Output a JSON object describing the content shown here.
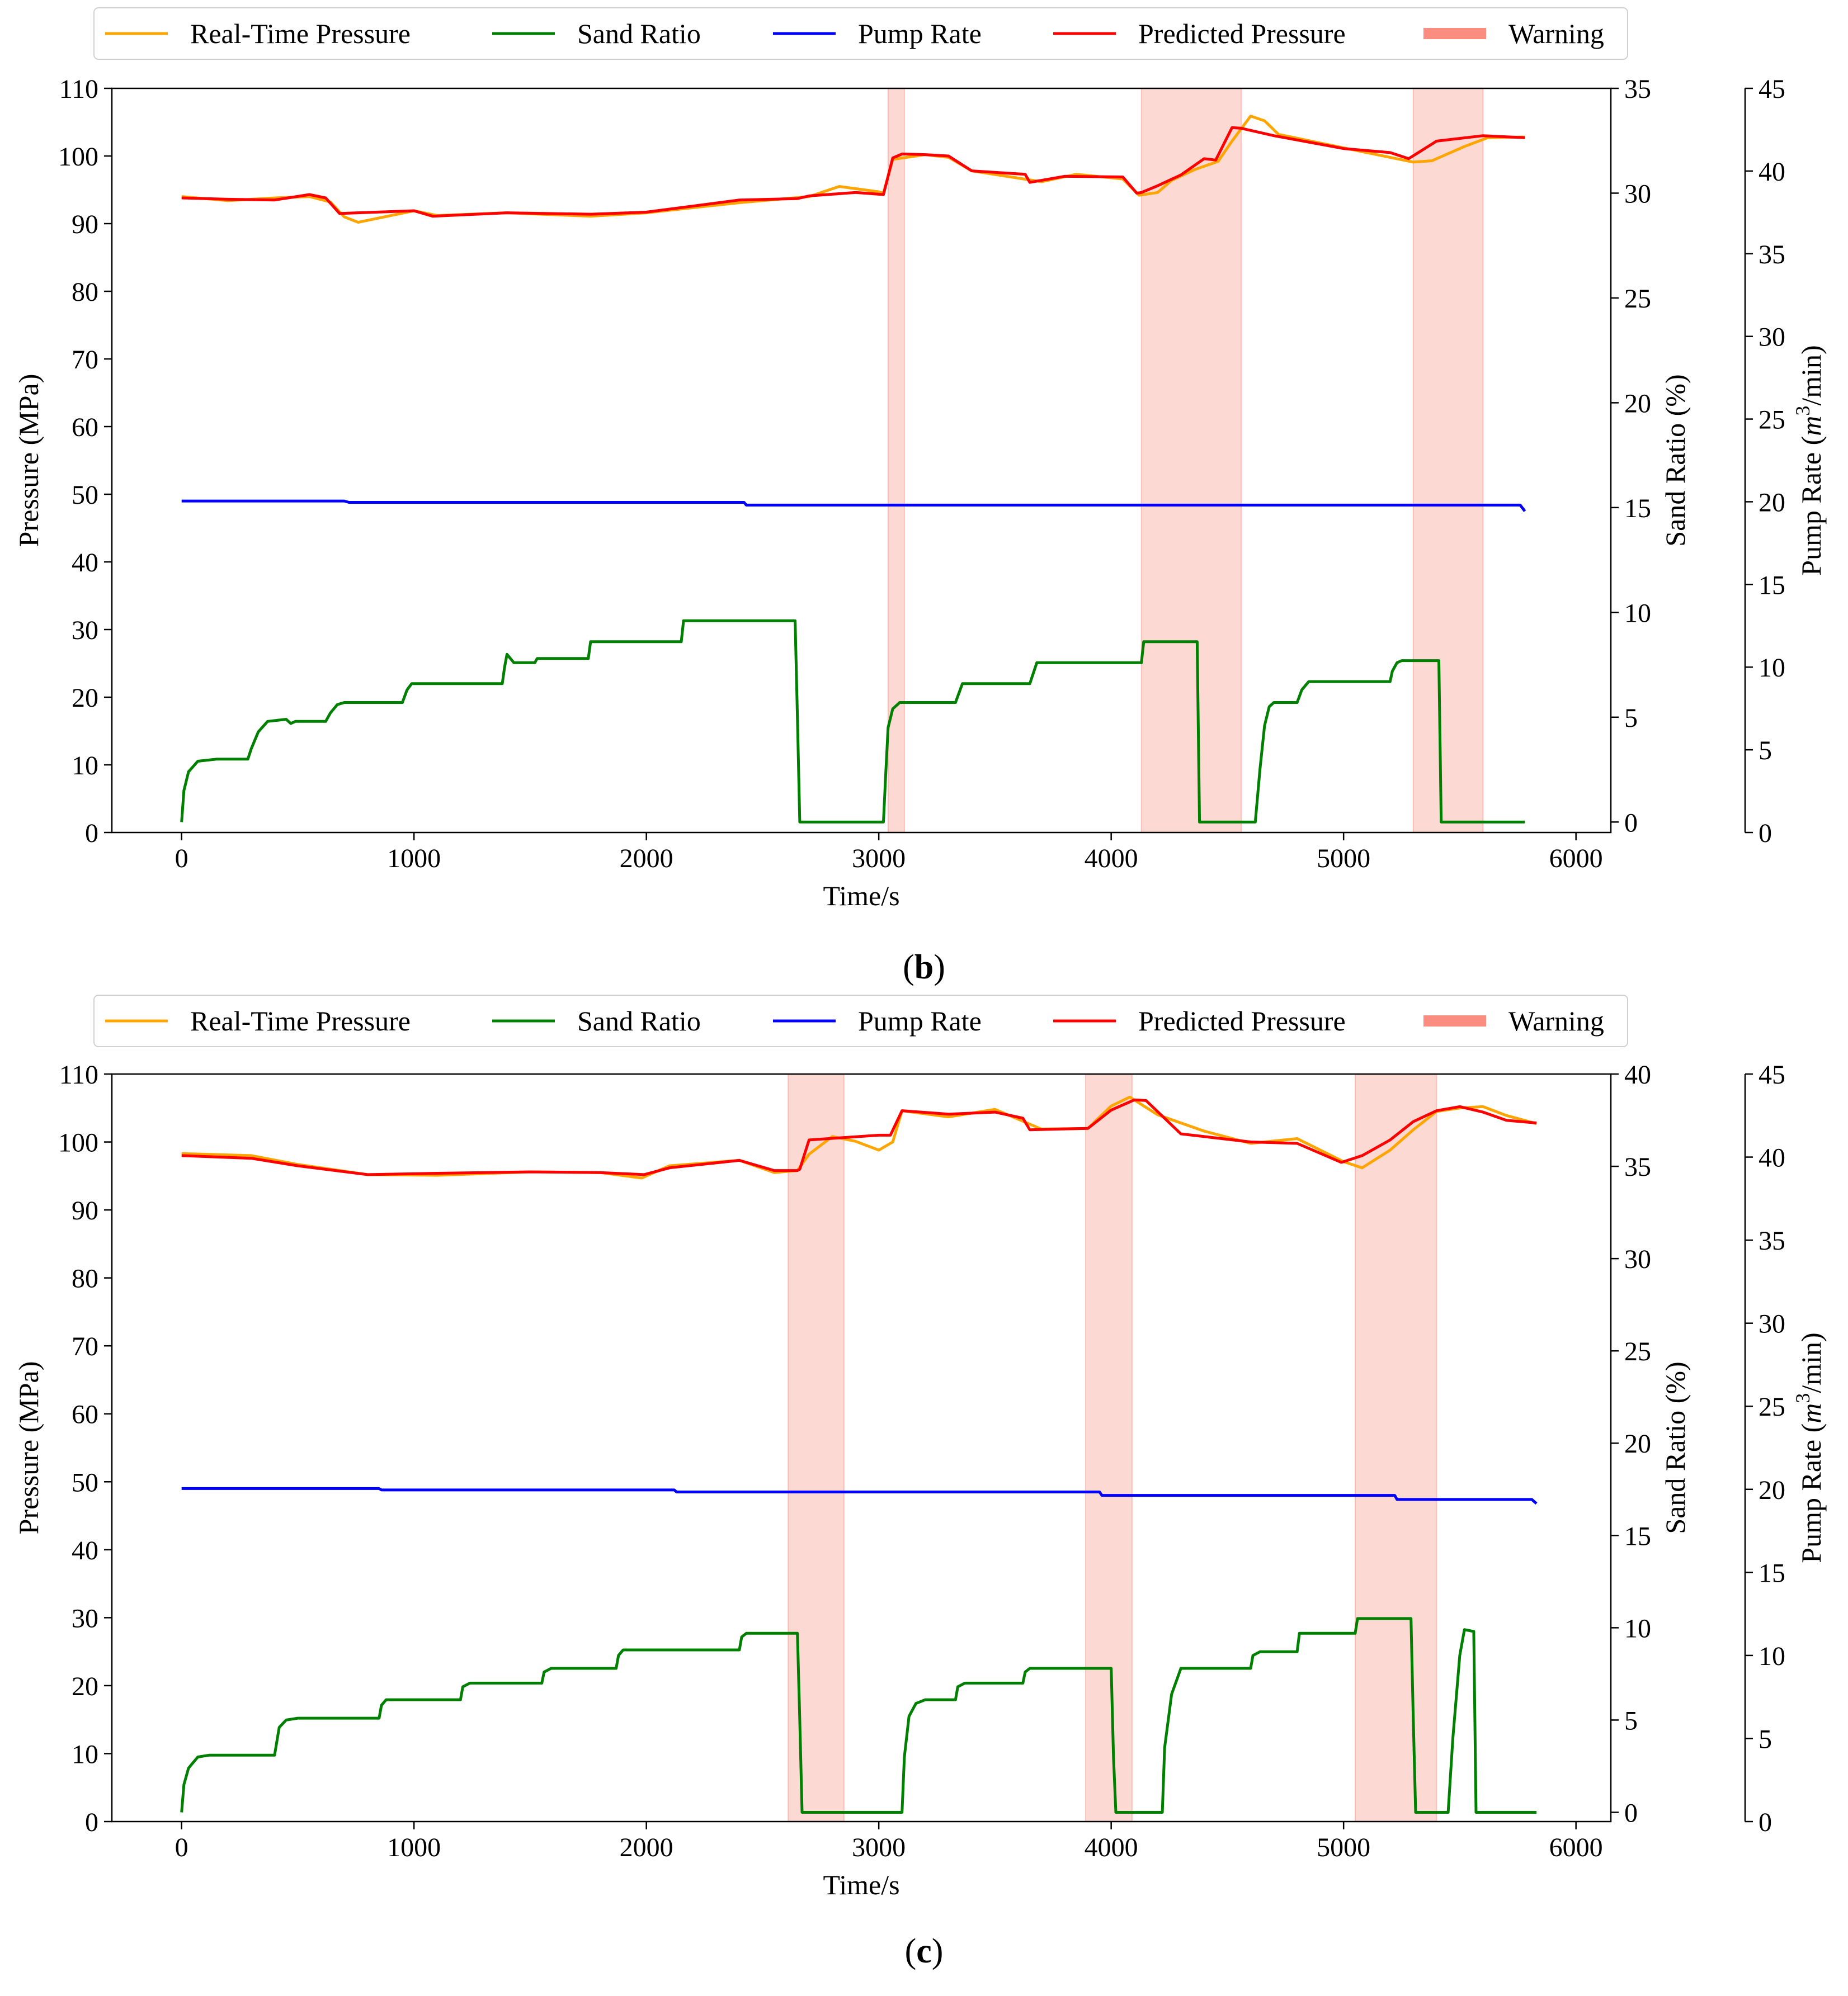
{
  "chart_data": [
    {
      "panel": "b",
      "caption": {
        "open": "(",
        "letter": "b",
        "close": ")"
      },
      "type": "line",
      "xlabel": "Time/s",
      "ylabel_left": "Pressure (MPa)",
      "ylabel_right1": "Sand Ratio (%)",
      "ylabel_right2": {
        "prefix": "Pump Rate (",
        "m": "m",
        "sup": "3",
        "suffix": "/min)"
      },
      "xlim": [
        -300,
        6150
      ],
      "ylim_left": [
        0,
        110
      ],
      "ylim_sand": [
        -0.5,
        35
      ],
      "ylim_pump": [
        0,
        45
      ],
      "xticks": [
        0,
        1000,
        2000,
        3000,
        4000,
        5000,
        6000
      ],
      "yticks_left": [
        0,
        10,
        20,
        30,
        40,
        50,
        60,
        70,
        80,
        90,
        100,
        110
      ],
      "yticks_sand": [
        0,
        5,
        10,
        15,
        20,
        25,
        30,
        35
      ],
      "yticks_pump": [
        0,
        5,
        10,
        15,
        20,
        25,
        30,
        35,
        40,
        45
      ],
      "legend": [
        "Real-Time Pressure",
        "Sand Ratio",
        "Pump Rate",
        "Predicted Pressure",
        "Warning"
      ],
      "colors": {
        "real": "#ffa500",
        "sand": "#008000",
        "pump": "#0000ff",
        "pred": "#ff0000",
        "warn": "#fa8072"
      },
      "warnings": [
        [
          3040,
          3110
        ],
        [
          4130,
          4560
        ],
        [
          5300,
          5600
        ]
      ],
      "series": [
        {
          "name": "Real-Time Pressure",
          "axis": "left",
          "x": [
            0,
            200,
            400,
            550,
            640,
            700,
            760,
            1000,
            1100,
            1400,
            1760,
            2000,
            2400,
            2700,
            2830,
            3000,
            3020,
            3060,
            3200,
            3300,
            3400,
            3700,
            3850,
            4050,
            4120,
            4200,
            4260,
            4360,
            4460,
            4520,
            4600,
            4660,
            4720,
            5000,
            5300,
            5380,
            5520,
            5620,
            5780
          ],
          "y": [
            94,
            93.4,
            93.8,
            94,
            93.2,
            91,
            90.2,
            91.9,
            91.2,
            91.6,
            91.1,
            91.6,
            93.1,
            94,
            95.5,
            94.7,
            94.5,
            99.5,
            100.2,
            99.8,
            97.8,
            96.2,
            97.3,
            96.6,
            94.2,
            94.6,
            96.4,
            98,
            99.2,
            102.2,
            105.9,
            105.2,
            103.2,
            101.2,
            99.1,
            99.3,
            101.4,
            102.7,
            102.8
          ]
        },
        {
          "name": "Sand Ratio",
          "axis": "sand",
          "x": [
            0,
            10,
            30,
            70,
            150,
            285,
            300,
            330,
            370,
            450,
            470,
            490,
            620,
            640,
            670,
            700,
            950,
            970,
            990,
            1380,
            1390,
            1400,
            1430,
            1520,
            1530,
            1750,
            1760,
            2150,
            2160,
            2640,
            2650,
            2660,
            3020,
            3030,
            3040,
            3060,
            3090,
            3330,
            3360,
            3650,
            3680,
            4130,
            4140,
            4370,
            4380,
            4620,
            4640,
            4660,
            4680,
            4700,
            4800,
            4820,
            4850,
            5200,
            5210,
            5230,
            5250,
            5410,
            5420,
            5780
          ],
          "y": [
            0,
            1.5,
            2.4,
            2.9,
            3,
            3,
            3.5,
            4.3,
            4.8,
            4.9,
            4.7,
            4.8,
            4.8,
            5.2,
            5.6,
            5.7,
            5.7,
            6.3,
            6.6,
            6.6,
            7.4,
            8,
            7.6,
            7.6,
            7.8,
            7.8,
            8.6,
            8.6,
            9.6,
            9.6,
            5,
            0,
            0,
            2.3,
            4.5,
            5.4,
            5.7,
            5.7,
            6.6,
            6.6,
            7.6,
            7.6,
            8.6,
            8.6,
            0,
            0,
            2.5,
            4.6,
            5.5,
            5.7,
            5.7,
            6.3,
            6.7,
            6.7,
            7.2,
            7.6,
            7.7,
            7.7,
            0,
            0
          ]
        },
        {
          "name": "Pump Rate",
          "axis": "left",
          "x": [
            0,
            700,
            720,
            2420,
            2430,
            5760,
            5780
          ],
          "y": [
            49,
            49,
            48.8,
            48.8,
            48.4,
            48.4,
            47.5
          ]
        },
        {
          "name": "Predicted Pressure",
          "axis": "left",
          "x": [
            0,
            200,
            400,
            550,
            620,
            680,
            760,
            1000,
            1080,
            1400,
            1760,
            2000,
            2400,
            2650,
            2700,
            2900,
            3020,
            3060,
            3100,
            3200,
            3300,
            3400,
            3630,
            3650,
            3800,
            4050,
            4110,
            4130,
            4200,
            4300,
            4400,
            4450,
            4520,
            4560,
            4700,
            5000,
            5200,
            5280,
            5400,
            5600,
            5780
          ],
          "y": [
            93.8,
            93.6,
            93.5,
            94.3,
            93.8,
            91.5,
            91.6,
            91.9,
            91.1,
            91.6,
            91.4,
            91.7,
            93.5,
            93.7,
            94.1,
            94.6,
            94.3,
            99.7,
            100.3,
            100.2,
            100,
            97.8,
            97.3,
            96.1,
            97,
            96.9,
            94.5,
            94.6,
            95.6,
            97.2,
            99.6,
            99.4,
            104.2,
            104.1,
            103,
            101.1,
            100.5,
            99.6,
            102.2,
            103,
            102.7
          ]
        }
      ]
    },
    {
      "panel": "c",
      "caption": {
        "open": "(",
        "letter": "c",
        "close": ")"
      },
      "type": "line",
      "xlabel": "Time/s",
      "ylabel_left": "Pressure (MPa)",
      "ylabel_right1": "Sand Ratio (%)",
      "ylabel_right2": {
        "prefix": "Pump Rate (",
        "m": "m",
        "sup": "3",
        "suffix": "/min)"
      },
      "xlim": [
        -300,
        6150
      ],
      "ylim_left": [
        0,
        110
      ],
      "ylim_sand": [
        -0.5,
        40
      ],
      "ylim_pump": [
        0,
        45
      ],
      "xticks": [
        0,
        1000,
        2000,
        3000,
        4000,
        5000,
        6000
      ],
      "yticks_left": [
        0,
        10,
        20,
        30,
        40,
        50,
        60,
        70,
        80,
        90,
        100,
        110
      ],
      "yticks_sand": [
        0,
        5,
        10,
        15,
        20,
        25,
        30,
        35,
        40
      ],
      "yticks_pump": [
        0,
        5,
        10,
        15,
        20,
        25,
        30,
        35,
        40,
        45
      ],
      "legend": [
        "Real-Time Pressure",
        "Sand Ratio",
        "Pump Rate",
        "Predicted Pressure",
        "Warning"
      ],
      "colors": {
        "real": "#ffa500",
        "sand": "#008000",
        "pump": "#0000ff",
        "pred": "#ff0000",
        "warn": "#fa8072"
      },
      "warnings": [
        [
          2610,
          2850
        ],
        [
          3890,
          4090
        ],
        [
          5050,
          5400
        ]
      ],
      "series": [
        {
          "name": "Real-Time Pressure",
          "axis": "left",
          "x": [
            0,
            300,
            500,
            800,
            1100,
            1500,
            1800,
            1980,
            2100,
            2400,
            2550,
            2650,
            2700,
            2800,
            2900,
            3000,
            3060,
            3100,
            3300,
            3500,
            3700,
            3900,
            4000,
            4080,
            4200,
            4400,
            4600,
            4800,
            5000,
            5080,
            5200,
            5300,
            5400,
            5500,
            5600,
            5700,
            5830
          ],
          "y": [
            98.3,
            98,
            96.7,
            95.2,
            95.1,
            95.6,
            95.5,
            94.7,
            96.5,
            97.3,
            95.5,
            95.8,
            98.2,
            100.8,
            100.1,
            98.8,
            100,
            104.6,
            103.7,
            104.8,
            101.9,
            102,
            105.3,
            106.6,
            104,
            101.6,
            99.8,
            100.5,
            97.1,
            96.2,
            98.8,
            101.8,
            104.5,
            105,
            105.2,
            103.9,
            102.7
          ]
        },
        {
          "name": "Sand Ratio",
          "axis": "sand",
          "x": [
            0,
            10,
            30,
            70,
            120,
            400,
            420,
            450,
            500,
            850,
            860,
            880,
            1200,
            1210,
            1240,
            1550,
            1560,
            1590,
            1870,
            1880,
            1900,
            2400,
            2410,
            2430,
            2650,
            2660,
            2670,
            3100,
            3110,
            3130,
            3160,
            3200,
            3330,
            3340,
            3370,
            3620,
            3630,
            3650,
            4000,
            4010,
            4020,
            4220,
            4230,
            4260,
            4300,
            4600,
            4610,
            4640,
            4800,
            4810,
            5050,
            5060,
            5290,
            5300,
            5310,
            5450,
            5470,
            5500,
            5520,
            5560,
            5570,
            5830
          ],
          "y": [
            0,
            1.5,
            2.4,
            3,
            3.1,
            3.1,
            4.6,
            5,
            5.1,
            5.1,
            5.8,
            6.1,
            6.1,
            6.8,
            7,
            7,
            7.6,
            7.8,
            7.8,
            8.5,
            8.8,
            8.8,
            9.5,
            9.7,
            9.7,
            5,
            0,
            0,
            3,
            5.2,
            5.9,
            6.1,
            6.1,
            6.8,
            7,
            7,
            7.6,
            7.8,
            7.8,
            3,
            0,
            0,
            3.5,
            6.4,
            7.8,
            7.8,
            8.5,
            8.7,
            8.7,
            9.7,
            9.7,
            10.5,
            10.5,
            5,
            0,
            0,
            4,
            8.5,
            9.9,
            9.8,
            0,
            0
          ]
        },
        {
          "name": "Pump Rate",
          "axis": "left",
          "x": [
            0,
            850,
            860,
            2120,
            2130,
            3950,
            3960,
            5220,
            5230,
            5810,
            5830
          ],
          "y": [
            49,
            49,
            48.8,
            48.8,
            48.5,
            48.5,
            48,
            48,
            47.4,
            47.4,
            46.8
          ]
        },
        {
          "name": "Predicted Pressure",
          "axis": "left",
          "x": [
            0,
            300,
            500,
            800,
            1100,
            1500,
            1800,
            1990,
            2100,
            2400,
            2550,
            2650,
            2660,
            2700,
            3000,
            3050,
            3100,
            3300,
            3500,
            3620,
            3650,
            3900,
            4000,
            4100,
            4150,
            4300,
            4600,
            4800,
            4990,
            5000,
            5080,
            5200,
            5300,
            5400,
            5500,
            5600,
            5700,
            5830
          ],
          "y": [
            98,
            97.6,
            96.5,
            95.2,
            95.4,
            95.6,
            95.5,
            95.2,
            96.2,
            97.3,
            95.8,
            95.8,
            96,
            100.3,
            101,
            101,
            104.6,
            104.1,
            104.4,
            103.5,
            101.8,
            102,
            104.7,
            106.2,
            106.1,
            101.2,
            100,
            99.8,
            97,
            97.1,
            98,
            100.3,
            103,
            104.6,
            105.2,
            104.4,
            103.2,
            102.8
          ]
        }
      ]
    }
  ]
}
